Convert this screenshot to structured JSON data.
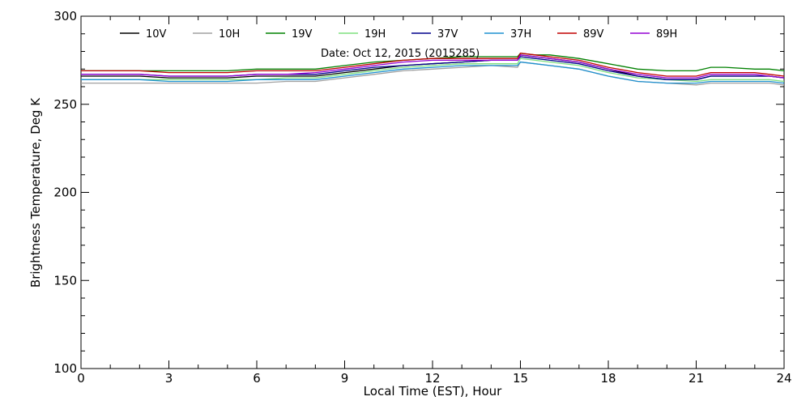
{
  "chart_data": {
    "type": "line",
    "title": "",
    "xlabel": "Local Time (EST), Hour",
    "ylabel": "Brightness Temperature, Deg K",
    "xlim": [
      0,
      24
    ],
    "ylim": [
      100,
      300
    ],
    "xticks": [
      0,
      3,
      6,
      9,
      12,
      15,
      18,
      21,
      24
    ],
    "yticks": [
      100,
      150,
      200,
      250,
      300
    ],
    "grid": false,
    "legend_position": "top",
    "annotation": "Date: Oct 12, 2015 (2015285)",
    "x": [
      0,
      1,
      2,
      3,
      4,
      5,
      6,
      7,
      8,
      9,
      10,
      11,
      12,
      13,
      14,
      14.9,
      15,
      15.5,
      16,
      17,
      18,
      19,
      20,
      21,
      21.5,
      22,
      23,
      23.5,
      24
    ],
    "series": [
      {
        "name": "10V",
        "color": "#000000",
        "values": [
          266,
          266,
          266,
          265,
          265,
          265,
          266,
          266,
          266,
          268,
          270,
          272,
          273,
          274,
          275,
          275,
          278,
          277,
          276,
          274,
          270,
          266,
          264,
          264,
          266,
          266,
          266,
          266,
          265
        ]
      },
      {
        "name": "10H",
        "color": "#a0a0a0",
        "values": [
          262,
          262,
          262,
          262,
          262,
          262,
          262,
          263,
          263,
          265,
          267,
          269,
          270,
          271,
          272,
          271,
          274,
          273,
          272,
          270,
          266,
          263,
          262,
          261,
          262,
          262,
          262,
          262,
          261
        ]
      },
      {
        "name": "19V",
        "color": "#008000",
        "values": [
          269,
          269,
          269,
          269,
          269,
          269,
          270,
          270,
          270,
          272,
          274,
          275,
          276,
          277,
          277,
          277,
          279,
          278,
          278,
          276,
          273,
          270,
          269,
          269,
          271,
          271,
          270,
          270,
          269
        ]
      },
      {
        "name": "19H",
        "color": "#7fe07f",
        "values": [
          264,
          264,
          264,
          264,
          264,
          264,
          264,
          265,
          265,
          267,
          269,
          271,
          272,
          273,
          273,
          273,
          276,
          275,
          274,
          272,
          268,
          265,
          264,
          263,
          264,
          264,
          264,
          264,
          263
        ]
      },
      {
        "name": "37V",
        "color": "#00008b",
        "values": [
          267,
          267,
          267,
          266,
          266,
          266,
          267,
          267,
          267,
          269,
          271,
          272,
          273,
          274,
          275,
          275,
          277,
          276,
          275,
          273,
          269,
          266,
          264,
          264,
          266,
          266,
          266,
          266,
          265
        ]
      },
      {
        "name": "37H",
        "color": "#1e90d0",
        "values": [
          264,
          264,
          264,
          263,
          263,
          263,
          264,
          264,
          264,
          266,
          268,
          270,
          271,
          272,
          272,
          272,
          274,
          273,
          272,
          270,
          266,
          263,
          262,
          262,
          263,
          263,
          263,
          263,
          262
        ]
      },
      {
        "name": "89V",
        "color": "#c00000",
        "values": [
          269,
          269,
          269,
          268,
          268,
          268,
          269,
          269,
          269,
          271,
          273,
          275,
          276,
          276,
          276,
          276,
          279,
          278,
          277,
          275,
          271,
          268,
          266,
          266,
          268,
          268,
          268,
          267,
          266
        ]
      },
      {
        "name": "89H",
        "color": "#9400d3",
        "values": [
          267,
          267,
          267,
          266,
          266,
          266,
          267,
          267,
          268,
          270,
          272,
          274,
          275,
          275,
          275,
          275,
          278,
          277,
          276,
          274,
          270,
          267,
          265,
          265,
          267,
          267,
          267,
          266,
          265
        ]
      }
    ]
  }
}
